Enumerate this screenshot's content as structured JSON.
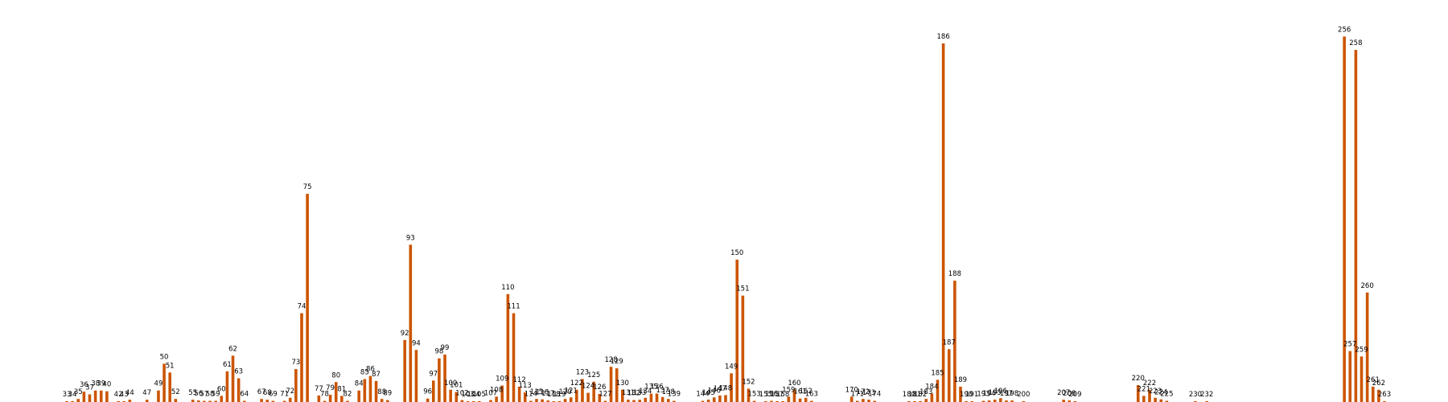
{
  "chart_data": {
    "type": "bar",
    "title": "",
    "xlabel": "",
    "ylabel": "",
    "ylim": [
      0,
      1000
    ],
    "bar_color": "#cc5500",
    "label_color": "#000000",
    "x_range": [
      33,
      263
    ],
    "points": [
      {
        "x": 33,
        "y": 2,
        "label": "33"
      },
      {
        "x": 34,
        "y": 2,
        "label": "34"
      },
      {
        "x": 35,
        "y": 8,
        "label": "35"
      },
      {
        "x": 36,
        "y": 27,
        "label": "36"
      },
      {
        "x": 37,
        "y": 20,
        "label": "37"
      },
      {
        "x": 38,
        "y": 30,
        "label": "38"
      },
      {
        "x": 39,
        "y": 30,
        "label": "39"
      },
      {
        "x": 40,
        "y": 28,
        "label": "40"
      },
      {
        "x": 42,
        "y": 2,
        "label": "42"
      },
      {
        "x": 43,
        "y": 2,
        "label": "43"
      },
      {
        "x": 44,
        "y": 6,
        "label": "44"
      },
      {
        "x": 47,
        "y": 6,
        "label": "47"
      },
      {
        "x": 49,
        "y": 30,
        "label": "49"
      },
      {
        "x": 50,
        "y": 100,
        "label": "50"
      },
      {
        "x": 51,
        "y": 77,
        "label": "51"
      },
      {
        "x": 52,
        "y": 8,
        "label": "52"
      },
      {
        "x": 55,
        "y": 6,
        "label": "55"
      },
      {
        "x": 56,
        "y": 4,
        "label": "56"
      },
      {
        "x": 57,
        "y": 3,
        "label": "57"
      },
      {
        "x": 58,
        "y": 3,
        "label": "58"
      },
      {
        "x": 59,
        "y": 3,
        "label": "59"
      },
      {
        "x": 60,
        "y": 16,
        "label": "60"
      },
      {
        "x": 61,
        "y": 80,
        "label": "61"
      },
      {
        "x": 62,
        "y": 121,
        "label": "62"
      },
      {
        "x": 63,
        "y": 62,
        "label": "63"
      },
      {
        "x": 64,
        "y": 3,
        "label": "64"
      },
      {
        "x": 67,
        "y": 8,
        "label": "67"
      },
      {
        "x": 68,
        "y": 6,
        "label": "68"
      },
      {
        "x": 69,
        "y": 3,
        "label": "69"
      },
      {
        "x": 71,
        "y": 3,
        "label": "71"
      },
      {
        "x": 72,
        "y": 11,
        "label": "72"
      },
      {
        "x": 73,
        "y": 86,
        "label": "73"
      },
      {
        "x": 74,
        "y": 232,
        "label": "74"
      },
      {
        "x": 75,
        "y": 544,
        "label": "75"
      },
      {
        "x": 77,
        "y": 17,
        "label": "77"
      },
      {
        "x": 78,
        "y": 3,
        "label": "78"
      },
      {
        "x": 79,
        "y": 19,
        "label": "79"
      },
      {
        "x": 80,
        "y": 52,
        "label": "80"
      },
      {
        "x": 81,
        "y": 16,
        "label": "81"
      },
      {
        "x": 82,
        "y": 3,
        "label": "82"
      },
      {
        "x": 84,
        "y": 30,
        "label": "84"
      },
      {
        "x": 85,
        "y": 60,
        "label": "85"
      },
      {
        "x": 86,
        "y": 68,
        "label": "86"
      },
      {
        "x": 87,
        "y": 55,
        "label": "87"
      },
      {
        "x": 88,
        "y": 8,
        "label": "88"
      },
      {
        "x": 89,
        "y": 5,
        "label": "89"
      },
      {
        "x": 92,
        "y": 162,
        "label": "92"
      },
      {
        "x": 93,
        "y": 411,
        "label": "93"
      },
      {
        "x": 94,
        "y": 136,
        "label": "94"
      },
      {
        "x": 96,
        "y": 9,
        "label": "96"
      },
      {
        "x": 97,
        "y": 56,
        "label": "97"
      },
      {
        "x": 98,
        "y": 114,
        "label": "98"
      },
      {
        "x": 99,
        "y": 124,
        "label": "99"
      },
      {
        "x": 100,
        "y": 32,
        "label": "100"
      },
      {
        "x": 101,
        "y": 26,
        "label": "101"
      },
      {
        "x": 102,
        "y": 5,
        "label": "102"
      },
      {
        "x": 103,
        "y": 2,
        "label": "103"
      },
      {
        "x": 104,
        "y": 2,
        "label": "104"
      },
      {
        "x": 105,
        "y": 2,
        "label": "105"
      },
      {
        "x": 107,
        "y": 5,
        "label": "107"
      },
      {
        "x": 108,
        "y": 14,
        "label": "108"
      },
      {
        "x": 109,
        "y": 43,
        "label": "109"
      },
      {
        "x": 110,
        "y": 282,
        "label": "110"
      },
      {
        "x": 111,
        "y": 232,
        "label": "111"
      },
      {
        "x": 112,
        "y": 40,
        "label": "112"
      },
      {
        "x": 113,
        "y": 25,
        "label": "113"
      },
      {
        "x": 114,
        "y": 3,
        "label": "114"
      },
      {
        "x": 115,
        "y": 8,
        "label": "115"
      },
      {
        "x": 116,
        "y": 7,
        "label": "116"
      },
      {
        "x": 117,
        "y": 4,
        "label": "117"
      },
      {
        "x": 118,
        "y": 2,
        "label": "118"
      },
      {
        "x": 119,
        "y": 2,
        "label": "119"
      },
      {
        "x": 120,
        "y": 8,
        "label": "120"
      },
      {
        "x": 121,
        "y": 12,
        "label": "121"
      },
      {
        "x": 122,
        "y": 32,
        "label": "122"
      },
      {
        "x": 123,
        "y": 60,
        "label": "123"
      },
      {
        "x": 124,
        "y": 24,
        "label": "124"
      },
      {
        "x": 125,
        "y": 53,
        "label": "125"
      },
      {
        "x": 126,
        "y": 21,
        "label": "126"
      },
      {
        "x": 127,
        "y": 3,
        "label": "127"
      },
      {
        "x": 128,
        "y": 92,
        "label": "128"
      },
      {
        "x": 129,
        "y": 88,
        "label": "129"
      },
      {
        "x": 130,
        "y": 32,
        "label": "130"
      },
      {
        "x": 131,
        "y": 6,
        "label": "131"
      },
      {
        "x": 132,
        "y": 5,
        "label": "132"
      },
      {
        "x": 133,
        "y": 6,
        "label": "133"
      },
      {
        "x": 134,
        "y": 11,
        "label": "134"
      },
      {
        "x": 135,
        "y": 22,
        "label": "135"
      },
      {
        "x": 136,
        "y": 22,
        "label": "136"
      },
      {
        "x": 137,
        "y": 13,
        "label": "137"
      },
      {
        "x": 138,
        "y": 8,
        "label": "138"
      },
      {
        "x": 139,
        "y": 3,
        "label": "139"
      },
      {
        "x": 144,
        "y": 3,
        "label": "144"
      },
      {
        "x": 145,
        "y": 6,
        "label": "145"
      },
      {
        "x": 146,
        "y": 12,
        "label": "146"
      },
      {
        "x": 147,
        "y": 17,
        "label": "147"
      },
      {
        "x": 148,
        "y": 18,
        "label": "148"
      },
      {
        "x": 149,
        "y": 75,
        "label": "149"
      },
      {
        "x": 150,
        "y": 372,
        "label": "150"
      },
      {
        "x": 151,
        "y": 278,
        "label": "151"
      },
      {
        "x": 152,
        "y": 35,
        "label": "152"
      },
      {
        "x": 153,
        "y": 3,
        "label": "153"
      },
      {
        "x": 155,
        "y": 2,
        "label": "155"
      },
      {
        "x": 156,
        "y": 3,
        "label": "156"
      },
      {
        "x": 157,
        "y": 2,
        "label": "157"
      },
      {
        "x": 158,
        "y": 2,
        "label": "158"
      },
      {
        "x": 159,
        "y": 14,
        "label": "159"
      },
      {
        "x": 160,
        "y": 32,
        "label": "160"
      },
      {
        "x": 161,
        "y": 9,
        "label": "161"
      },
      {
        "x": 162,
        "y": 11,
        "label": "162"
      },
      {
        "x": 163,
        "y": 3,
        "label": "163"
      },
      {
        "x": 170,
        "y": 14,
        "label": "170"
      },
      {
        "x": 171,
        "y": 3,
        "label": "171"
      },
      {
        "x": 172,
        "y": 8,
        "label": "172"
      },
      {
        "x": 173,
        "y": 6,
        "label": "173"
      },
      {
        "x": 174,
        "y": 3,
        "label": "174"
      },
      {
        "x": 180,
        "y": 2,
        "label": "180"
      },
      {
        "x": 181,
        "y": 2,
        "label": "181"
      },
      {
        "x": 182,
        "y": 2,
        "label": "182"
      },
      {
        "x": 183,
        "y": 8,
        "label": "183"
      },
      {
        "x": 184,
        "y": 22,
        "label": "184"
      },
      {
        "x": 185,
        "y": 58,
        "label": "185"
      },
      {
        "x": 186,
        "y": 937,
        "label": "186"
      },
      {
        "x": 187,
        "y": 138,
        "label": "187"
      },
      {
        "x": 188,
        "y": 317,
        "label": "188"
      },
      {
        "x": 189,
        "y": 40,
        "label": "189"
      },
      {
        "x": 190,
        "y": 2,
        "label": "190"
      },
      {
        "x": 191,
        "y": 2,
        "label": "191"
      },
      {
        "x": 193,
        "y": 3,
        "label": "193"
      },
      {
        "x": 194,
        "y": 4,
        "label": "194"
      },
      {
        "x": 195,
        "y": 6,
        "label": "195"
      },
      {
        "x": 196,
        "y": 10,
        "label": "196"
      },
      {
        "x": 197,
        "y": 4,
        "label": "197"
      },
      {
        "x": 198,
        "y": 4,
        "label": "198"
      },
      {
        "x": 200,
        "y": 2,
        "label": "200"
      },
      {
        "x": 207,
        "y": 6,
        "label": "207"
      },
      {
        "x": 208,
        "y": 4,
        "label": "208"
      },
      {
        "x": 209,
        "y": 2,
        "label": "209"
      },
      {
        "x": 220,
        "y": 44,
        "label": "220"
      },
      {
        "x": 221,
        "y": 16,
        "label": "221"
      },
      {
        "x": 222,
        "y": 32,
        "label": "222"
      },
      {
        "x": 223,
        "y": 11,
        "label": "223"
      },
      {
        "x": 224,
        "y": 7,
        "label": "224"
      },
      {
        "x": 225,
        "y": 3,
        "label": "225"
      },
      {
        "x": 230,
        "y": 2,
        "label": "230"
      },
      {
        "x": 232,
        "y": 2,
        "label": "232"
      },
      {
        "x": 256,
        "y": 955,
        "label": "256"
      },
      {
        "x": 257,
        "y": 133,
        "label": "257"
      },
      {
        "x": 258,
        "y": 920,
        "label": "258"
      },
      {
        "x": 259,
        "y": 119,
        "label": "259"
      },
      {
        "x": 260,
        "y": 286,
        "label": "260"
      },
      {
        "x": 261,
        "y": 40,
        "label": "261"
      },
      {
        "x": 262,
        "y": 32,
        "label": "262"
      },
      {
        "x": 263,
        "y": 2,
        "label": "263"
      }
    ]
  }
}
